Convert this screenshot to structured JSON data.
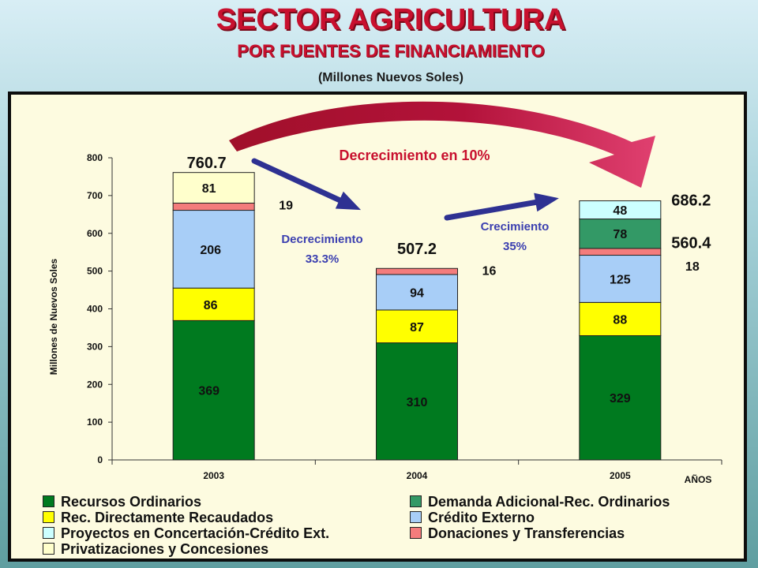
{
  "header": {
    "title": "SECTOR AGRICULTURA",
    "subtitle": "POR FUENTES DE FINANCIAMIENTO",
    "units": "(Millones Nuevos Soles)"
  },
  "chart_data": {
    "type": "bar",
    "stacked": true,
    "categories": [
      "2003",
      "2004",
      "2005"
    ],
    "ylabel": "Millones de Nuevos Soles",
    "xlabel": "AÑOS",
    "ylim": [
      0,
      800
    ],
    "yticks": [
      0,
      100,
      200,
      300,
      400,
      500,
      600,
      700,
      800
    ],
    "grid": false,
    "legend_position": "bottom",
    "series": [
      {
        "name": "Recursos Ordinarios",
        "color": "#007a1f",
        "values": [
          369,
          310,
          329
        ],
        "labels": [
          "369",
          "310",
          "329"
        ]
      },
      {
        "name": "Rec. Directamente Recaudados",
        "color": "#ffff00",
        "values": [
          86,
          87,
          88
        ],
        "labels": [
          "86",
          "87",
          "88"
        ]
      },
      {
        "name": "Crédito Externo",
        "color": "#a8cef7",
        "values": [
          206,
          94,
          125
        ],
        "labels": [
          "206",
          "94",
          "125"
        ]
      },
      {
        "name": "Donaciones y Transferencias",
        "color": "#f47c7c",
        "values": [
          19,
          16,
          18
        ],
        "labels": [
          "19",
          "16",
          "18"
        ]
      },
      {
        "name": "Demanda Adicional-Rec. Ordinarios",
        "color": "#339966",
        "values": [
          0,
          0,
          78
        ],
        "labels": [
          "",
          "",
          "78"
        ]
      },
      {
        "name": "Proyectos en Concertación-Crédito Ext.",
        "color": "#ccffff",
        "values": [
          0,
          0,
          48
        ],
        "labels": [
          "",
          "",
          "48"
        ]
      },
      {
        "name": "Privatizaciones y Concesiones",
        "color": "#ffffcc",
        "values": [
          81,
          0,
          0
        ],
        "labels": [
          "81",
          "",
          ""
        ]
      }
    ],
    "totals": [
      {
        "category": "2003",
        "value": 760.7,
        "label": "760.7"
      },
      {
        "category": "2004",
        "value": 507.2,
        "label": "507.2"
      },
      {
        "category": "2005",
        "value": 686.2,
        "label": "686.2"
      },
      {
        "category": "2005",
        "value": 560.4,
        "label": "560.4"
      }
    ],
    "annotations": [
      {
        "line1": "Decrecimiento",
        "line2": "33.3%"
      },
      {
        "line1": "Crecimiento",
        "line2": "35%"
      },
      {
        "text": "Decrecimiento en 10%"
      }
    ],
    "legend_order": [
      "Recursos Ordinarios",
      "Demanda Adicional-Rec. Ordinarios",
      "Rec. Directamente Recaudados",
      "Crédito Externo",
      "Proyectos en Concertación-Crédito Ext.",
      "Donaciones y Transferencias",
      "Privatizaciones y Concesiones"
    ]
  }
}
